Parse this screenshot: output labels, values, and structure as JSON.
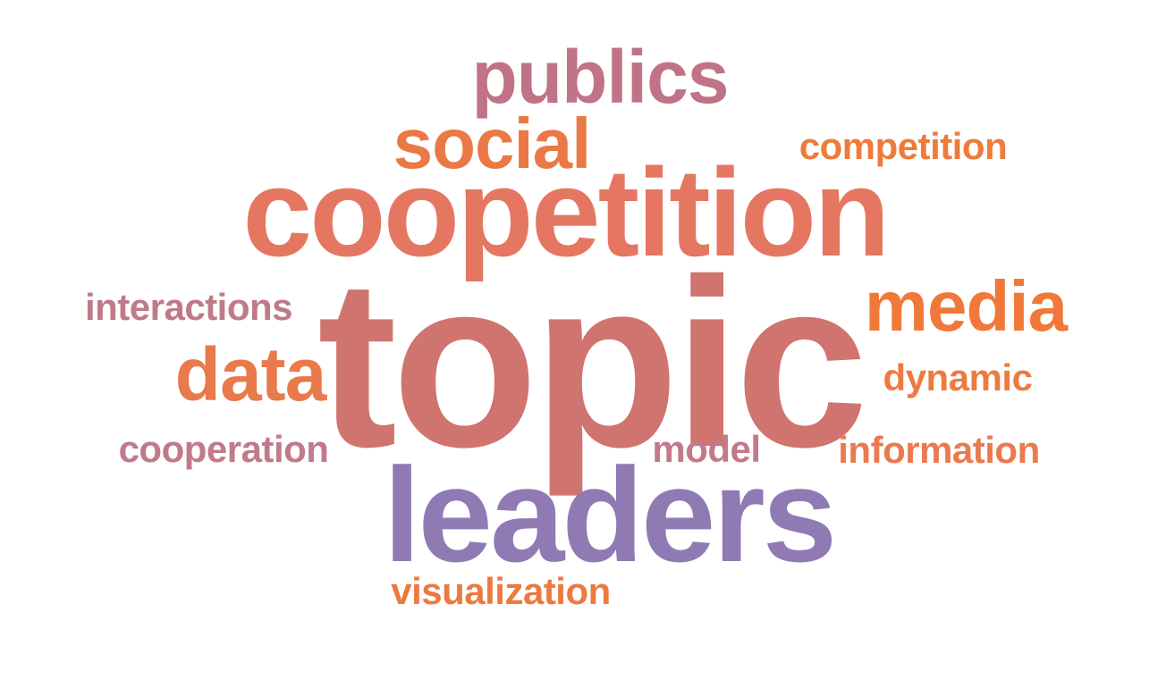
{
  "words": [
    {
      "text": "topic",
      "color": "#d07470"
    },
    {
      "text": "coopetition",
      "color": "#e57762"
    },
    {
      "text": "leaders",
      "color": "#907ab4"
    },
    {
      "text": "publics",
      "color": "#c07386"
    },
    {
      "text": "social",
      "color": "#ea7945"
    },
    {
      "text": "media",
      "color": "#f0793a"
    },
    {
      "text": "data",
      "color": "#e87a4b"
    },
    {
      "text": "competition",
      "color": "#ef7b3b"
    },
    {
      "text": "interactions",
      "color": "#bf7a88"
    },
    {
      "text": "dynamic",
      "color": "#ed7b40"
    },
    {
      "text": "information",
      "color": "#ea7a50"
    },
    {
      "text": "cooperation",
      "color": "#c07a8a"
    },
    {
      "text": "model",
      "color": "#c27a8a"
    },
    {
      "text": "visualization",
      "color": "#ec7a40"
    }
  ]
}
